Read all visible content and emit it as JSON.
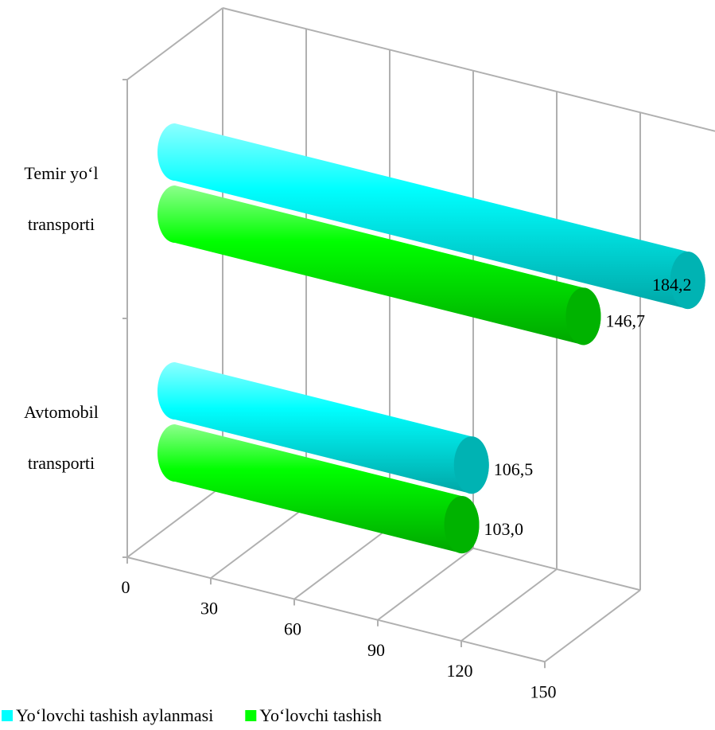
{
  "chart_data": {
    "type": "bar3d",
    "categories": [
      "Avtomobil transporti",
      "Temir yo‘l transporti"
    ],
    "series": [
      {
        "name": "Yo‘lovchi tashish aylanmasi",
        "color": "#00ffff",
        "values": [
          106.5,
          184.2
        ],
        "value_labels": [
          "106,5",
          "184,2"
        ]
      },
      {
        "name": "Yo‘lovchi tashish",
        "color": "#00ff00",
        "values": [
          103.0,
          146.7
        ],
        "value_labels": [
          "103,0",
          "146,7"
        ]
      }
    ],
    "xlim": [
      0,
      150
    ],
    "xticks": [
      0,
      30,
      60,
      90,
      120,
      150
    ],
    "grid": true,
    "legend": "bottom-left"
  }
}
